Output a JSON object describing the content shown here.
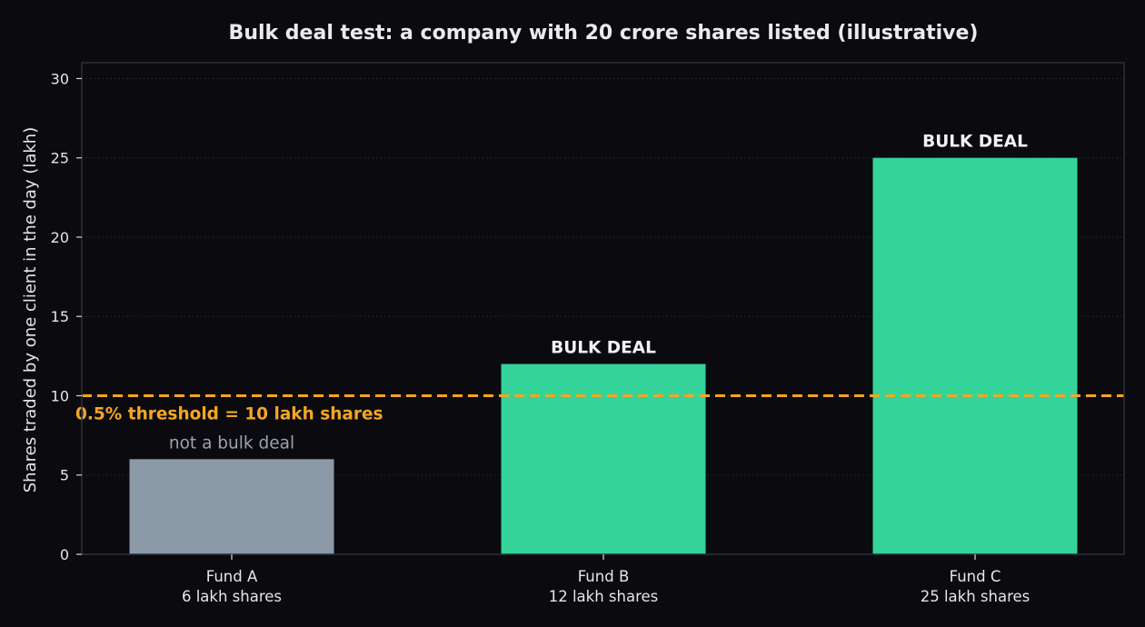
{
  "chart_data": {
    "type": "bar",
    "title": "Bulk deal test: a company with 20 crore shares listed (illustrative)",
    "xlabel": "",
    "ylabel": "Shares traded by one client in the day (lakh)",
    "ylim": [
      0,
      31
    ],
    "yticks": [
      0,
      5,
      10,
      15,
      20,
      25,
      30
    ],
    "grid": true,
    "categories": [
      [
        "Fund A",
        "6 lakh shares"
      ],
      [
        "Fund B",
        "12 lakh shares"
      ],
      [
        "Fund C",
        "25 lakh shares"
      ]
    ],
    "values": [
      6,
      12,
      25
    ],
    "bar_annotations": [
      "not a bulk deal",
      "BULK DEAL",
      "BULK DEAL"
    ],
    "bar_colors": [
      "#8c99a6",
      "#34d399",
      "#34d399"
    ],
    "threshold": {
      "value": 10,
      "label": "0.5% threshold = 10 lakh shares",
      "color": "#f5a524"
    }
  },
  "colors": {
    "background": "#0b0b0f",
    "axes_border": "#2a323a",
    "grid": "#2a2a2a",
    "muted_label": "#9aa3ae"
  }
}
